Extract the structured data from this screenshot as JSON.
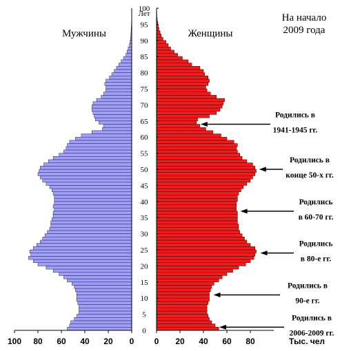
{
  "chart_data": {
    "type": "bar",
    "orientation": "horizontal-pyramid",
    "title_lines": [
      "На начало",
      "2009 года"
    ],
    "left_label": "Мужчины",
    "right_label": "Женщины",
    "y_unit_label": "Лет",
    "x_unit_label": "Тыс. чел",
    "age_range": [
      0,
      100
    ],
    "age_ticks": [
      0,
      5,
      10,
      15,
      20,
      25,
      30,
      35,
      40,
      45,
      50,
      55,
      60,
      65,
      70,
      75,
      80,
      85,
      90,
      95,
      100
    ],
    "x_ticks_left": [
      100,
      80,
      60,
      40,
      20,
      0
    ],
    "x_ticks_right": [
      0,
      20,
      40,
      60,
      80,
      100
    ],
    "xlim": [
      0,
      100
    ],
    "series": [
      {
        "name": "Мужчины",
        "color": "#9f9ff7",
        "values": [
          55,
          53,
          52,
          49,
          47,
          45,
          45,
          45,
          46,
          47,
          47,
          47,
          48,
          49,
          51,
          55,
          58,
          62,
          67,
          73,
          80,
          84,
          88,
          86,
          87,
          84,
          81,
          78,
          76,
          74,
          72,
          70,
          69,
          69,
          68,
          67,
          67,
          66,
          67,
          66,
          66,
          66,
          67,
          68,
          70,
          73,
          76,
          78,
          80,
          79,
          78,
          75,
          71,
          67,
          62,
          58,
          56,
          55,
          53,
          48,
          43,
          34,
          25,
          24,
          28,
          31,
          32,
          33,
          34,
          34,
          33,
          30,
          26,
          24,
          22,
          22,
          23,
          22,
          19,
          17,
          15,
          13,
          11,
          9,
          7,
          5,
          4,
          3,
          2,
          1.5,
          1,
          0.8,
          0.6,
          0.4,
          0.3,
          0.2,
          0.1,
          0.1,
          0.1,
          0.1
        ]
      },
      {
        "name": "Женщины",
        "color": "#ee1c1c",
        "values": [
          53,
          50,
          47,
          45,
          44,
          43,
          43,
          43,
          44,
          45,
          45,
          45,
          46,
          47,
          49,
          53,
          56,
          60,
          65,
          70,
          76,
          80,
          83,
          84,
          85,
          84,
          80,
          77,
          75,
          73,
          71,
          70,
          70,
          69,
          69,
          69,
          69,
          68,
          68,
          68,
          69,
          69,
          70,
          72,
          74,
          77,
          80,
          82,
          84,
          85,
          84,
          82,
          77,
          73,
          71,
          69,
          68,
          69,
          66,
          60,
          55,
          48,
          42,
          37,
          34,
          35,
          45,
          51,
          54,
          56,
          57,
          58,
          51,
          46,
          43,
          42,
          44,
          45,
          44,
          41,
          40,
          37,
          30,
          27,
          22,
          18,
          15,
          12,
          10,
          8,
          5.5,
          4,
          3,
          2,
          1.5,
          1,
          0.6,
          0.3,
          0.2,
          0.1
        ]
      }
    ],
    "annotations": [
      {
        "lines": [
          "Родились в",
          "1941-1945 гг."
        ],
        "age": 64
      },
      {
        "lines": [
          "Родились в",
          "конце 50-х гг."
        ],
        "age": 50
      },
      {
        "lines": [
          "Родились",
          "в 60-70 гг."
        ],
        "age": 37
      },
      {
        "lines": [
          "Родились",
          "в 80-е гг."
        ],
        "age": 24
      },
      {
        "lines": [
          "Родились в",
          "90-е гг."
        ],
        "age": 11
      },
      {
        "lines": [
          "Родились в",
          "2006-2009 гг."
        ],
        "age": 1
      }
    ]
  }
}
